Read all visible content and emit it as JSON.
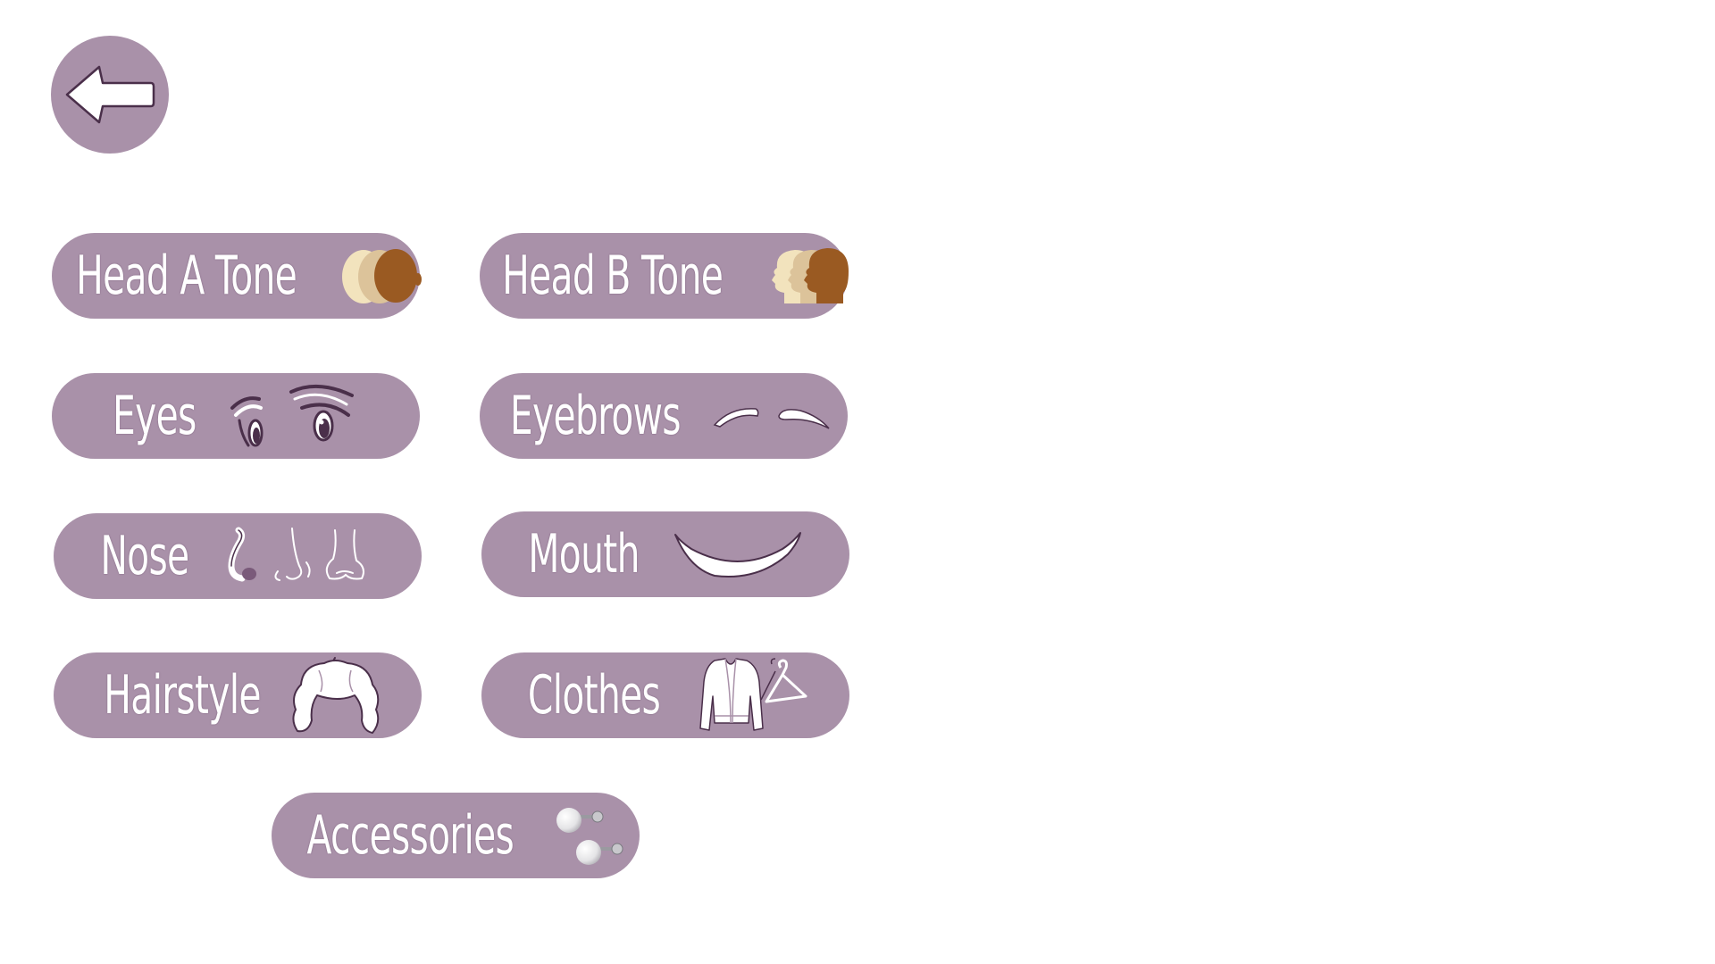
{
  "colors": {
    "button_fill": "#a991a9",
    "button_text": "#ffffff",
    "outline": "#4a2f4a",
    "skin_light": "#f2e3bd",
    "skin_mid": "#dcc39a",
    "skin_dark": "#9a5a22",
    "background": "#ffffff"
  },
  "back_button": {
    "icon": "arrow-left-icon"
  },
  "menu": [
    {
      "id": "head_a",
      "label": "Head A Tone",
      "icon": "skin-tone-heads-front-icon"
    },
    {
      "id": "head_b",
      "label": "Head B Tone",
      "icon": "skin-tone-heads-profile-icon"
    },
    {
      "id": "eyes",
      "label": "Eyes",
      "icon": "eyes-icon"
    },
    {
      "id": "eyebrows",
      "label": "Eyebrows",
      "icon": "eyebrows-icon"
    },
    {
      "id": "nose",
      "label": "Nose",
      "icon": "nose-icon"
    },
    {
      "id": "mouth",
      "label": "Mouth",
      "icon": "mouth-smile-icon"
    },
    {
      "id": "hairstyle",
      "label": "Hairstyle",
      "icon": "hair-icon"
    },
    {
      "id": "clothes",
      "label": "Clothes",
      "icon": "cardigan-hanger-icon"
    },
    {
      "id": "accessories",
      "label": "Accessories",
      "icon": "pearl-earrings-icon"
    }
  ]
}
